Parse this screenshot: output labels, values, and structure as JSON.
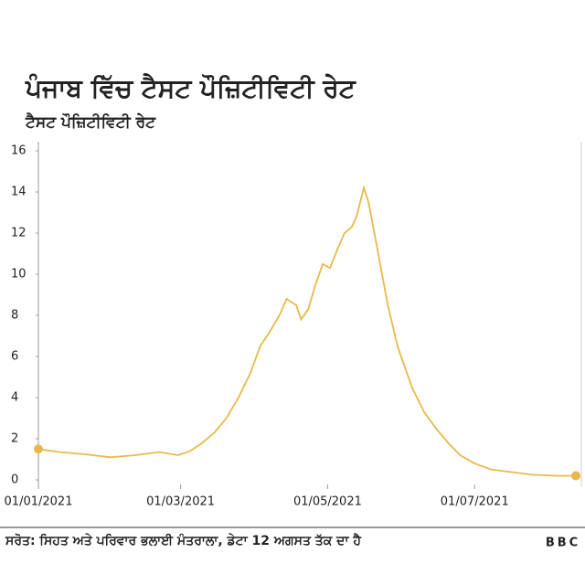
{
  "chart_data": {
    "type": "line",
    "title": "ਪੰਜਾਬ ਵਿੱਚ ਟੈਸਟ ਪੌਜ਼ਿਟੀਵਿਟੀ ਰੇਟ",
    "subtitle": "ਟੈਸਟ ਪੌਜ਼ਿਟੀਵਿਟੀ ਰੇਟ",
    "x": [
      "01/01/2021",
      "10/01/2021",
      "20/01/2021",
      "31/01/2021",
      "10/02/2021",
      "20/02/2021",
      "28/02/2021",
      "05/03/2021",
      "10/03/2021",
      "15/03/2021",
      "20/03/2021",
      "25/03/2021",
      "30/03/2021",
      "03/04/2021",
      "07/04/2021",
      "11/04/2021",
      "14/04/2021",
      "18/04/2021",
      "20/04/2021",
      "23/04/2021",
      "26/04/2021",
      "29/04/2021",
      "02/05/2021",
      "05/05/2021",
      "08/05/2021",
      "11/05/2021",
      "13/05/2021",
      "16/05/2021",
      "18/05/2021",
      "22/05/2021",
      "26/05/2021",
      "30/05/2021",
      "05/06/2021",
      "10/06/2021",
      "15/06/2021",
      "20/06/2021",
      "25/06/2021",
      "01/07/2021",
      "08/07/2021",
      "15/07/2021",
      "25/07/2021",
      "05/08/2021",
      "12/08/2021"
    ],
    "series": [
      {
        "name": "ਟੈਸਟ ਪੌਜ਼ਿਟੀਵਿਟੀ ਰੇਟ",
        "color": "#e8b94a",
        "values": [
          1.5,
          1.35,
          1.25,
          1.1,
          1.2,
          1.35,
          1.2,
          1.4,
          1.8,
          2.3,
          3.0,
          4.0,
          5.2,
          6.5,
          7.2,
          8.0,
          8.8,
          8.5,
          7.8,
          8.3,
          9.5,
          10.5,
          10.3,
          11.2,
          12.0,
          12.3,
          12.8,
          14.2,
          13.5,
          11.0,
          8.5,
          6.5,
          4.5,
          3.3,
          2.5,
          1.8,
          1.2,
          0.8,
          0.5,
          0.4,
          0.25,
          0.2,
          0.2
        ]
      }
    ],
    "xlim": [
      "01/01/2021",
      "12/08/2021"
    ],
    "xticks": [
      "01/01/2021",
      "01/03/2021",
      "01/05/2021",
      "01/07/2021"
    ],
    "ylim": [
      0,
      16
    ],
    "yticks": [
      0,
      2,
      4,
      6,
      8,
      10,
      12,
      14,
      16
    ],
    "source": "ਸਰੋਤ: ਸਿਹਤ ਅਤੇ ਪਰਿਵਾਰ ਭਲਾਈ ਮੰਤਰਾਲਾ, ਡੇਟਾ 12 ਅਗਸਤ ਤੱਕ ਦਾ ਹੈ",
    "logo": "BBC"
  }
}
